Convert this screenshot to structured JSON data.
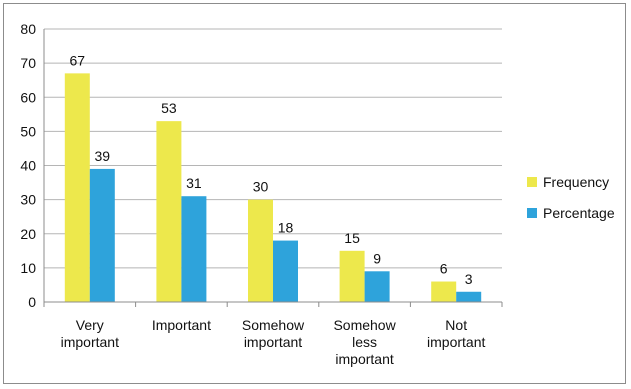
{
  "chart_data": {
    "type": "bar",
    "categories": [
      [
        "Very",
        "important"
      ],
      [
        "Important"
      ],
      [
        "Somehow",
        "important"
      ],
      [
        "Somehow",
        "less",
        "important"
      ],
      [
        "Not",
        "important"
      ]
    ],
    "series": [
      {
        "name": "Frequency",
        "values": [
          67,
          53,
          30,
          15,
          6
        ],
        "color": "#ede84c"
      },
      {
        "name": "Percentage",
        "values": [
          39,
          31,
          18,
          9,
          3
        ],
        "color": "#2ea3db"
      }
    ],
    "yticks": [
      0,
      10,
      20,
      30,
      40,
      50,
      60,
      70,
      80
    ],
    "ylim": [
      0,
      80
    ],
    "grid": true,
    "data_labels": true,
    "legend_position": "right",
    "colors": {
      "grid": "#b5b5b5",
      "axis": "#8c8c8c",
      "frame": "#8c8c8c"
    }
  }
}
